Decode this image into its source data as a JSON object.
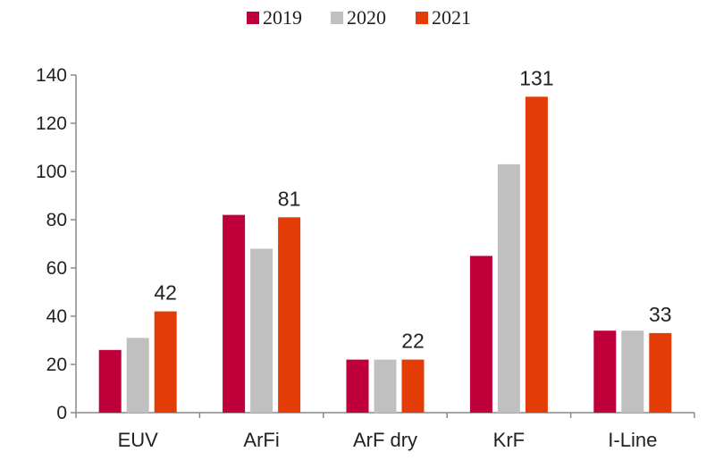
{
  "chart_data": {
    "type": "bar",
    "title": "",
    "xlabel": "",
    "ylabel": "",
    "categories": [
      "EUV",
      "ArFi",
      "ArF dry",
      "KrF",
      "I-Line"
    ],
    "series": [
      {
        "name": "2019",
        "color": "#c0003a",
        "values": [
          26,
          82,
          22,
          65,
          34
        ]
      },
      {
        "name": "2020",
        "color": "#c0c0c0",
        "values": [
          31,
          68,
          22,
          103,
          34
        ]
      },
      {
        "name": "2021",
        "color": "#e33c06",
        "values": [
          42,
          81,
          22,
          131,
          33
        ]
      }
    ],
    "data_labels": {
      "series": "2021",
      "values": [
        "42",
        "81",
        "22",
        "131",
        "33"
      ]
    },
    "ylim": [
      0,
      140
    ],
    "yticks": [
      0,
      20,
      40,
      60,
      80,
      100,
      120,
      140
    ],
    "ytick_labels": [
      "0",
      "20",
      "40",
      "60",
      "80",
      "100",
      "120",
      "140"
    ],
    "grid": false,
    "legend_position": "top-center"
  }
}
